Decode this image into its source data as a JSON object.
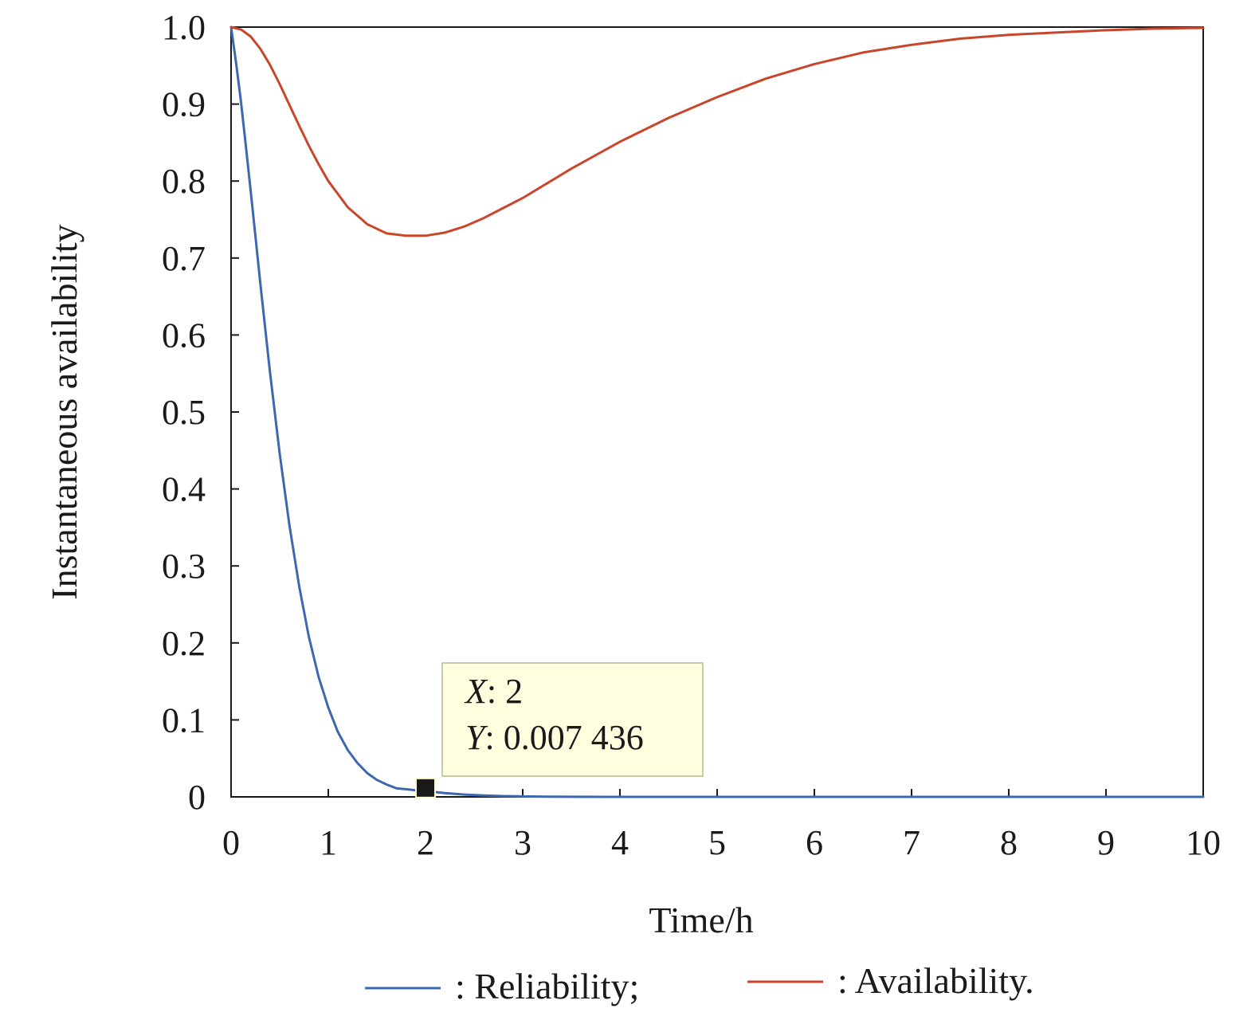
{
  "chart_data": {
    "type": "line",
    "title": "",
    "xlabel": "Time/h",
    "ylabel": "Instantaneous availability",
    "xlim": [
      0,
      10
    ],
    "ylim": [
      0,
      1
    ],
    "x_ticks": [
      "0",
      "1",
      "2",
      "3",
      "4",
      "5",
      "6",
      "7",
      "8",
      "9",
      "10"
    ],
    "y_ticks": [
      "0",
      "0.1",
      "0.2",
      "0.3",
      "0.4",
      "0.5",
      "0.6",
      "0.7",
      "0.8",
      "0.9",
      "1.0"
    ],
    "series": [
      {
        "name": ": Reliability;",
        "color": "#3d68b0",
        "x": [
          0,
          0.05,
          0.1,
          0.15,
          0.2,
          0.25,
          0.3,
          0.4,
          0.5,
          0.6,
          0.7,
          0.8,
          0.9,
          1.0,
          1.1,
          1.2,
          1.3,
          1.4,
          1.5,
          1.6,
          1.7,
          1.8,
          1.9,
          2.0,
          2.2,
          2.4,
          2.6,
          2.8,
          3.0,
          3.25,
          3.5,
          4,
          5,
          6,
          7,
          8,
          9,
          10
        ],
        "values": [
          1.0,
          0.955,
          0.905,
          0.848,
          0.789,
          0.729,
          0.668,
          0.552,
          0.446,
          0.353,
          0.274,
          0.208,
          0.156,
          0.116,
          0.084,
          0.061,
          0.044,
          0.031,
          0.022,
          0.016,
          0.0112,
          0.0099,
          0.0086,
          0.007436,
          0.0049,
          0.003,
          0.0018,
          0.001,
          0.0006,
          0.0003,
          0.0001,
          0,
          0,
          0,
          0,
          0,
          0,
          0
        ]
      },
      {
        "name": ": Availability.",
        "color": "#c8462c",
        "x": [
          0,
          0.1,
          0.2,
          0.3,
          0.4,
          0.5,
          0.6,
          0.7,
          0.8,
          0.9,
          1.0,
          1.2,
          1.4,
          1.6,
          1.8,
          2.0,
          2.2,
          2.4,
          2.6,
          2.8,
          3.0,
          3.5,
          4.0,
          4.5,
          5.0,
          5.5,
          6.0,
          6.5,
          7.0,
          7.5,
          8.0,
          8.5,
          9.0,
          9.5,
          10.0
        ],
        "values": [
          1.0,
          0.997,
          0.988,
          0.972,
          0.951,
          0.926,
          0.899,
          0.872,
          0.846,
          0.822,
          0.8,
          0.766,
          0.744,
          0.732,
          0.729,
          0.729,
          0.733,
          0.741,
          0.752,
          0.765,
          0.778,
          0.816,
          0.851,
          0.882,
          0.909,
          0.933,
          0.952,
          0.967,
          0.977,
          0.985,
          0.99,
          0.993,
          0.996,
          0.998,
          0.999
        ]
      }
    ],
    "annotation": {
      "x_label": "X",
      "x_text": ": 2",
      "y_label": "Y",
      "y_text": ": 0.007 436",
      "x": 2,
      "y": 0.007436
    }
  }
}
